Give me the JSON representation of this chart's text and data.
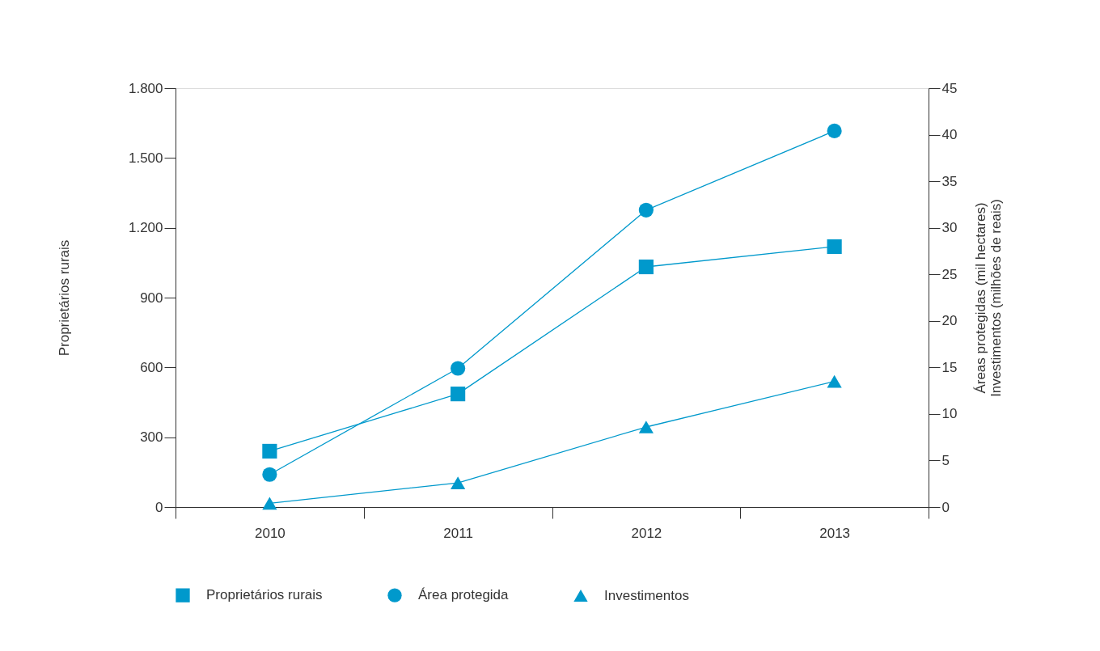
{
  "chart_data": {
    "type": "line",
    "categories": [
      "2010",
      "2011",
      "2012",
      "2013"
    ],
    "ylabel": "Proprietários rurais",
    "y2label": "Áreas protegidas (mil hectares)\nInvestimentos (milhões de reais)",
    "ylim": [
      0,
      1800
    ],
    "yticks": [
      0,
      300,
      600,
      900,
      {
        "value": 1200,
        "label": "1.200"
      },
      {
        "value": 1500,
        "label": "1.500"
      },
      {
        "value": 1800,
        "label": "1.800"
      }
    ],
    "y2lim": [
      0,
      45
    ],
    "y2ticks": [
      0,
      5,
      10,
      15,
      20,
      25,
      30,
      35,
      40,
      45
    ],
    "series": [
      {
        "name": "Proprietários rurais",
        "color": "#0099cc",
        "marker": "square",
        "values": [
          240,
          486,
          1032,
          1119
        ]
      },
      {
        "name": "Área protegida",
        "color": "#0099cc",
        "marker": "circle",
        "axis": "y2",
        "values": [
          3.5,
          14.9,
          31.9,
          40.4
        ]
      },
      {
        "name": "Investimentos",
        "color": "#0099cc",
        "marker": "triangle",
        "axis": "y2",
        "values": [
          0.4,
          2.6,
          8.6,
          13.5
        ]
      }
    ],
    "grid": false,
    "legend": "bottom"
  }
}
